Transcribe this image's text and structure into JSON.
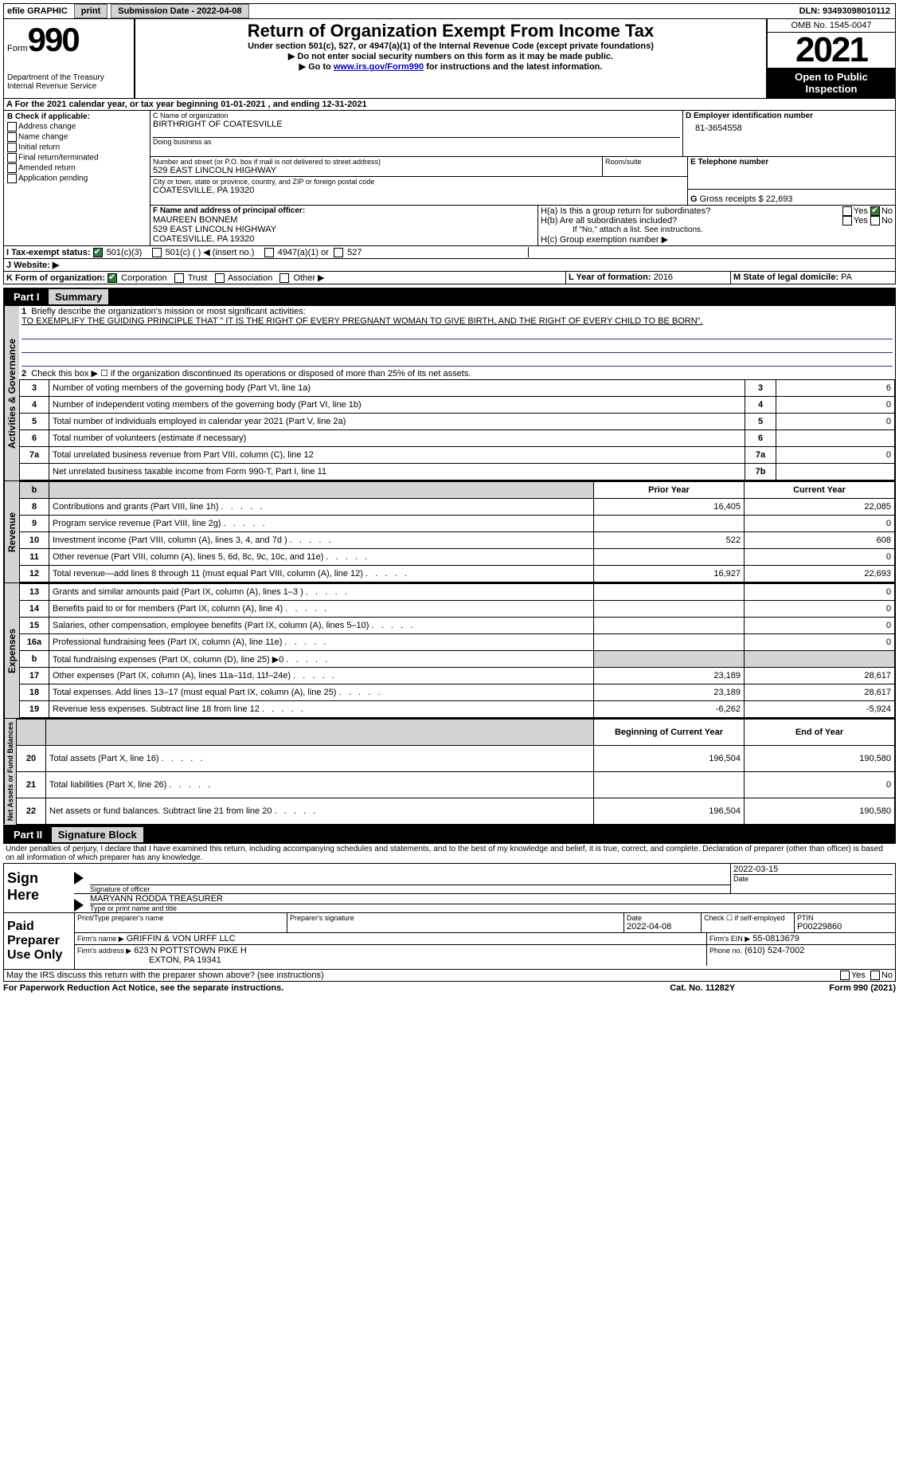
{
  "topbar": {
    "efile_label": "efile GRAPHIC",
    "print_btn": "print",
    "submission_label": "Submission Date - 2022-04-08",
    "dln": "DLN: 93493098010112"
  },
  "header": {
    "form_word": "Form",
    "form_num": "990",
    "dept": "Department of the Treasury Internal Revenue Service",
    "title": "Return of Organization Exempt From Income Tax",
    "sub1": "Under section 501(c), 527, or 4947(a)(1) of the Internal Revenue Code (except private foundations)",
    "sub2": "▶ Do not enter social security numbers on this form as it may be made public.",
    "sub3_pre": "▶ Go to ",
    "sub3_link": "www.irs.gov/Form990",
    "sub3_post": " for instructions and the latest information.",
    "omb": "OMB No. 1545-0047",
    "year": "2021",
    "open": "Open to Public Inspection"
  },
  "line_a": "A For the 2021 calendar year, or tax year beginning 01-01-2021    , and ending 12-31-2021",
  "block_b": {
    "label": "B Check if applicable:",
    "items": [
      "Address change",
      "Name change",
      "Initial return",
      "Final return/terminated",
      "Amended return",
      "Application pending"
    ]
  },
  "block_c": {
    "label": "C Name of organization",
    "name": "BIRTHRIGHT OF COATESVILLE",
    "dba_label": "Doing business as",
    "addr_label": "Number and street (or P.O. box if mail is not delivered to street address)",
    "room_label": "Room/suite",
    "addr": "529 EAST LINCOLN HIGHWAY",
    "city_label": "City or town, state or province, country, and ZIP or foreign postal code",
    "city": "COATESVILLE, PA  19320"
  },
  "block_d": {
    "label": "D Employer identification number",
    "val": "81-3654558"
  },
  "block_e": {
    "label": "E Telephone number",
    "val": ""
  },
  "block_g": {
    "label": "G",
    "text": "Gross receipts $",
    "val": "22,693"
  },
  "block_f": {
    "label": "F Name and address of principal officer:",
    "name": "MAUREEN BONNEM",
    "addr1": "529 EAST LINCOLN HIGHWAY",
    "addr2": "COATESVILLE, PA  19320"
  },
  "block_h": {
    "ha": "H(a)  Is this a group return for subordinates?",
    "hb": "H(b)  Are all subordinates included?",
    "hb_note": "If \"No,\" attach a list. See instructions.",
    "hc": "H(c)  Group exemption number ▶",
    "yes": "Yes",
    "no": "No"
  },
  "line_i": {
    "label": "I   Tax-exempt status:",
    "opt1": "501(c)(3)",
    "opt2": "501(c) (  ) ◀ (insert no.)",
    "opt3": "4947(a)(1) or",
    "opt4": "527"
  },
  "line_j_label": "J   Website: ▶",
  "line_k": {
    "label": "K Form of organization:",
    "opts": [
      "Corporation",
      "Trust",
      "Association",
      "Other ▶"
    ]
  },
  "line_l": {
    "label": "L Year of formation:",
    "val": "2016"
  },
  "line_m": {
    "label": "M State of legal domicile:",
    "val": "PA"
  },
  "parts": {
    "p1": "Part I",
    "p1_title": "Summary",
    "p2": "Part II",
    "p2_title": "Signature Block"
  },
  "summary": {
    "q1": "Briefly describe the organization's mission or most significant activities:",
    "mission": "TO EXEMPLIFY THE GUIDING PRINCIPLE THAT \" IT IS THE RIGHT OF EVERY PREGNANT WOMAN TO GIVE BIRTH, AND THE RIGHT OF EVERY CHILD TO BE BORN\".",
    "q2": "Check this box ▶ ☐ if the organization discontinued its operations or disposed of more than 25% of its net assets.",
    "lines": {
      "3": {
        "t": "Number of voting members of the governing body (Part VI, line 1a)",
        "v": "6"
      },
      "4": {
        "t": "Number of independent voting members of the governing body (Part VI, line 1b)",
        "v": "0"
      },
      "5": {
        "t": "Total number of individuals employed in calendar year 2021 (Part V, line 2a)",
        "v": "0"
      },
      "6": {
        "t": "Total number of volunteers (estimate if necessary)",
        "v": ""
      },
      "7a": {
        "t": "Total unrelated business revenue from Part VIII, column (C), line 12",
        "v": "0"
      },
      "7b": {
        "t": "Net unrelated business taxable income from Form 990-T, Part I, line 11",
        "v": ""
      }
    },
    "col_prior": "Prior Year",
    "col_current": "Current Year",
    "rev": [
      {
        "n": "8",
        "t": "Contributions and grants (Part VIII, line 1h)",
        "p": "16,405",
        "c": "22,085"
      },
      {
        "n": "9",
        "t": "Program service revenue (Part VIII, line 2g)",
        "p": "",
        "c": "0"
      },
      {
        "n": "10",
        "t": "Investment income (Part VIII, column (A), lines 3, 4, and 7d )",
        "p": "522",
        "c": "608"
      },
      {
        "n": "11",
        "t": "Other revenue (Part VIII, column (A), lines 5, 6d, 8c, 9c, 10c, and 11e)",
        "p": "",
        "c": "0"
      },
      {
        "n": "12",
        "t": "Total revenue—add lines 8 through 11 (must equal Part VIII, column (A), line 12)",
        "p": "16,927",
        "c": "22,693"
      }
    ],
    "exp": [
      {
        "n": "13",
        "t": "Grants and similar amounts paid (Part IX, column (A), lines 1–3 )",
        "p": "",
        "c": "0"
      },
      {
        "n": "14",
        "t": "Benefits paid to or for members (Part IX, column (A), line 4)",
        "p": "",
        "c": "0"
      },
      {
        "n": "15",
        "t": "Salaries, other compensation, employee benefits (Part IX, column (A), lines 5–10)",
        "p": "",
        "c": "0"
      },
      {
        "n": "16a",
        "t": "Professional fundraising fees (Part IX, column (A), line 11e)",
        "p": "",
        "c": "0"
      },
      {
        "n": "b",
        "t": "Total fundraising expenses (Part IX, column (D), line 25) ▶0",
        "p": "GREY",
        "c": "GREY"
      },
      {
        "n": "17",
        "t": "Other expenses (Part IX, column (A), lines 11a–11d, 11f–24e)",
        "p": "23,189",
        "c": "28,617"
      },
      {
        "n": "18",
        "t": "Total expenses. Add lines 13–17 (must equal Part IX, column (A), line 25)",
        "p": "23,189",
        "c": "28,617"
      },
      {
        "n": "19",
        "t": "Revenue less expenses. Subtract line 18 from line 12",
        "p": "-6,262",
        "c": "-5,924"
      }
    ],
    "col_begin": "Beginning of Current Year",
    "col_end": "End of Year",
    "net": [
      {
        "n": "20",
        "t": "Total assets (Part X, line 16)",
        "p": "196,504",
        "c": "190,580"
      },
      {
        "n": "21",
        "t": "Total liabilities (Part X, line 26)",
        "p": "",
        "c": "0"
      },
      {
        "n": "22",
        "t": "Net assets or fund balances. Subtract line 21 from line 20",
        "p": "196,504",
        "c": "190,580"
      }
    ],
    "side_labels": [
      "Activities & Governance",
      "Revenue",
      "Expenses",
      "Net Assets or Fund Balances"
    ]
  },
  "sig": {
    "perjury": "Under penalties of perjury, I declare that I have examined this return, including accompanying schedules and statements, and to the best of my knowledge and belief, it is true, correct, and complete. Declaration of preparer (other than officer) is based on all information of which preparer has any knowledge.",
    "sign_here": "Sign Here",
    "sig_officer": "Signature of officer",
    "sig_date": "2022-03-15",
    "date_label": "Date",
    "officer": "MARYANN RODDA  TREASURER",
    "type_name": "Type or print name and title",
    "paid": "Paid Preparer Use Only",
    "print_name_label": "Print/Type preparer's name",
    "prep_sig_label": "Preparer's signature",
    "prep_date_label": "Date",
    "prep_date": "2022-04-08",
    "check_self": "Check ☐ if self-employed",
    "ptin_label": "PTIN",
    "ptin": "P00229860",
    "firm_name_label": "Firm's name    ▶",
    "firm_name": "GRIFFIN & VON URFF LLC",
    "firm_ein_label": "Firm's EIN ▶",
    "firm_ein": "55-0813679",
    "firm_addr_label": "Firm's address ▶",
    "firm_addr1": "623 N POTTSTOWN PIKE H",
    "firm_addr2": "EXTON, PA  19341",
    "phone_label": "Phone no.",
    "phone": "(610) 524-7002",
    "discuss": "May the IRS discuss this return with the preparer shown above? (see instructions)"
  },
  "footer": {
    "left": "For Paperwork Reduction Act Notice, see the separate instructions.",
    "mid": "Cat. No. 11282Y",
    "right": "Form 990 (2021)"
  }
}
